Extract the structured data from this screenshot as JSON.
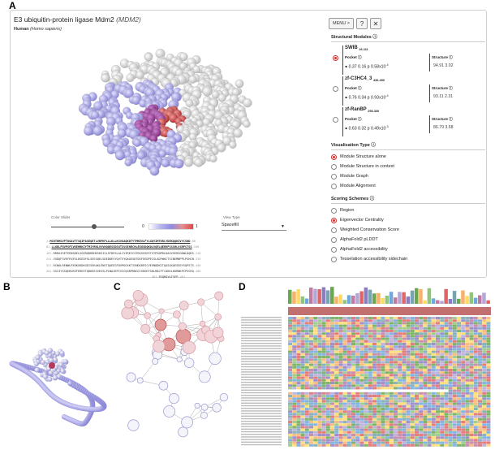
{
  "panel_labels": {
    "a": "A",
    "b": "B",
    "c": "C",
    "d": "D"
  },
  "protein": {
    "title": "E3 ubiquitin-protein ligase Mdm2",
    "title_italic": "(MDM2)",
    "species": "Human",
    "species_italic": "(Homo sapiens)"
  },
  "toolbar": {
    "menu_label": "MENU >",
    "help_icon": "?",
    "close_icon": "✕"
  },
  "slider": {
    "label": "Color Slider",
    "min": "0",
    "max": "1"
  },
  "view_type": {
    "label": "View Type",
    "selected": "Spacefill"
  },
  "sequence_lines": [
    {
      "start": "1",
      "text": "MCNTNMSVPTDGAVTTSQIPASEQETLVRPKPLLLKLLKSVGAQKDTYTMKEVLFYLGQYIMTKRLYDEKQQHIVYCSND",
      "end": "80"
    },
    {
      "start": "81",
      "text": "LLGDLFGVPSFSVKEHRKIYTMIYRNLVVVNQQESSDSGTSVSENRCHLEGGSDQKDLVQELQEEKPSSSHLVSRPSTSS",
      "end": "160"
    },
    {
      "start": "161",
      "text": "RRRAISETEENSDELSGERQRKRHKSDSISLSFDESLALCVIREICCERSSSSESTGTPSNPDLDAGVSEHSGDWLDQDS",
      "end": "240"
    },
    {
      "start": "241",
      "text": "VSDQFSVEFEVESLDSEDYSLSEEGQELSDEDDEVYQVTVYQAGESDTDSFEEDPEISLADYWKCTSCNEMNPPLPSHCN",
      "end": "320"
    },
    {
      "start": "321",
      "text": "RCWALRENWLPEDKGKDKGEISEKAKLENSTQAEEGFDVPDCKKTIVNDSRESCVEENDDKITQASQSQESEDYSQPSTS",
      "end": "400"
    },
    {
      "start": "401",
      "text": "SSIIYSSQEDVKEFEREETQDKEESVESSLPLNAIEPCVICQGRPKNGCIVHGKTGHLMACFTCAKKLKKRNKPCPVCRQ",
      "end": "480"
    },
    {
      "start": "481",
      "text": "PIQMIVLTYFP",
      "end": "491"
    }
  ],
  "structural_modules": {
    "title": "Structural Modules",
    "items": [
      {
        "name": "SWIB",
        "range": "26-111",
        "pocket_label": "Pocket",
        "pocket_values": "0.37  0.16 p 0.58x10",
        "pocket_exp": "-4",
        "structure_label": "Structure",
        "structure_values": "94.91  3.02",
        "selected": true
      },
      {
        "name": "zf-C3HC4_3",
        "range": "436-490",
        "pocket_label": "Pocket",
        "pocket_values": "0.76  0.34 p 0.93x10",
        "pocket_exp": "-4",
        "structure_label": "Structure",
        "structure_values": "93.11  2.31",
        "selected": false
      },
      {
        "name": "zf-RanBP",
        "range": "295-330",
        "pocket_label": "Pocket",
        "pocket_values": "0.63  0.32 p 0.49x10",
        "pocket_exp": "-3",
        "structure_label": "Structure",
        "structure_values": "86.79  3.68",
        "selected": false
      }
    ]
  },
  "visualisation": {
    "title": "Visualisation Type",
    "options": [
      {
        "label": "Module Structure alone",
        "selected": true
      },
      {
        "label": "Module Structure in context",
        "selected": false
      },
      {
        "label": "Module Graph",
        "selected": false
      },
      {
        "label": "Module Alignment",
        "selected": false
      }
    ]
  },
  "scoring": {
    "title": "Scoring Schemes",
    "options": [
      {
        "label": "Region",
        "selected": false
      },
      {
        "label": "Eigenvector Centrality",
        "selected": true
      },
      {
        "label": "Weighted Conservation Score",
        "selected": false
      },
      {
        "label": "AlphaFold2 pLDDT",
        "selected": false
      },
      {
        "label": "AlphaFold2 accessibility",
        "selected": false
      },
      {
        "label": "Tesselation accessibility sidechain",
        "selected": false
      }
    ]
  },
  "colors": {
    "accent_red": "#d0312d",
    "pocket_blue": "#9d9ae6",
    "pocket_red": "#e05252",
    "gray_atoms": "#d8d8d8"
  }
}
